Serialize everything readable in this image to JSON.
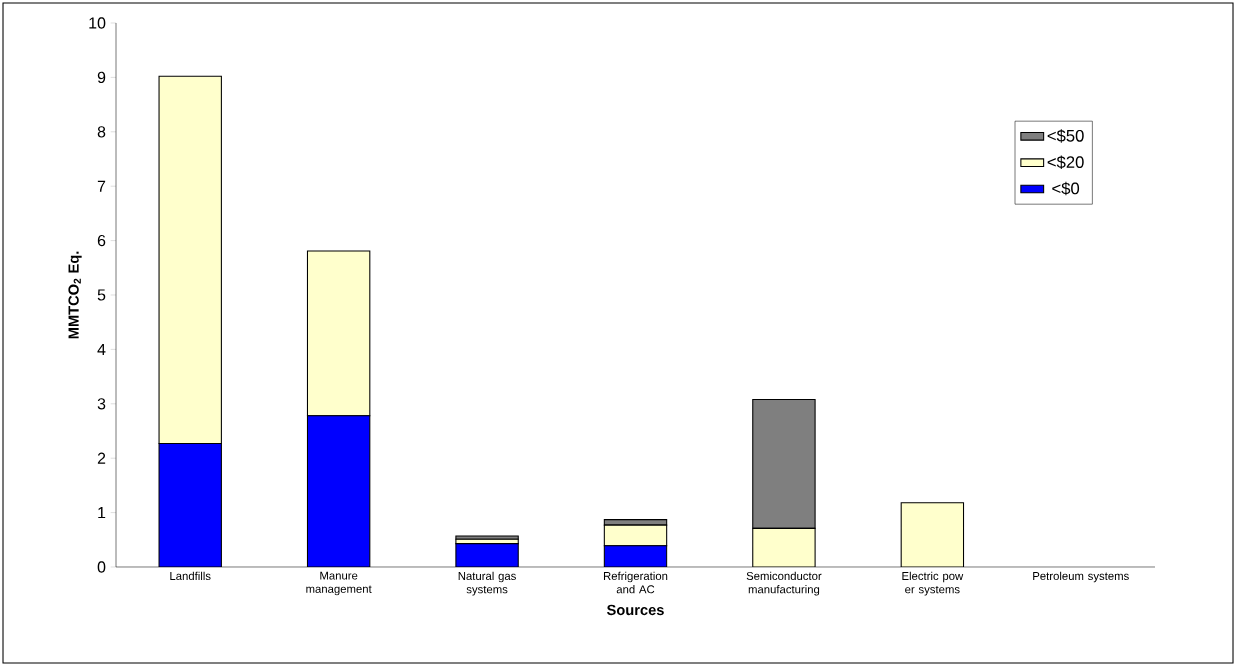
{
  "chart_data": {
    "type": "bar",
    "stacked": true,
    "xlabel": "Sources",
    "ylabel": "MMTCO$_{2}$ Eq.",
    "categories": [
      "Landfills",
      "Manure management",
      "Natural gas systems",
      "Refrigeration and AC",
      "Semiconductor manufacturing",
      "Electric pow er systems",
      "Petroleum systems"
    ],
    "series": [
      {
        "name": "<$0",
        "color": "#0000ff",
        "values": [
          2.27,
          2.78,
          0.43,
          0.39,
          0,
          0,
          0
        ]
      },
      {
        "name": "<$20",
        "color": "#ffffcc",
        "values": [
          6.75,
          3.03,
          0.08,
          0.38,
          0.71,
          1.18,
          0
        ]
      },
      {
        "name": "<$50",
        "color": "#7f7f7f",
        "values": [
          0,
          0,
          0.06,
          0.1,
          2.37,
          0,
          0
        ]
      }
    ],
    "ylim": [
      0,
      10
    ],
    "yticks": [
      0,
      1,
      2,
      3,
      4,
      5,
      6,
      7,
      8,
      9,
      10
    ],
    "grid": false,
    "legend": "right"
  }
}
